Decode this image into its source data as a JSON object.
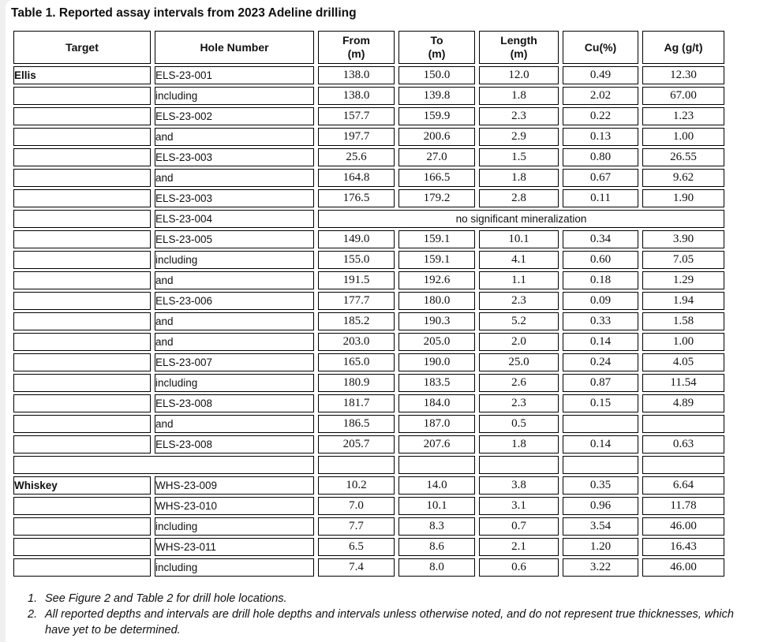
{
  "page": {
    "title": "Table 1. Reported assay intervals from 2023 Adeline drilling"
  },
  "table": {
    "headers": [
      {
        "name": "target",
        "lines": [
          "Target"
        ]
      },
      {
        "name": "hole-number",
        "lines": [
          "Hole Number"
        ]
      },
      {
        "name": "from-m",
        "lines": [
          "From",
          "(m)"
        ]
      },
      {
        "name": "to-m",
        "lines": [
          "To",
          "(m)"
        ]
      },
      {
        "name": "length-m",
        "lines": [
          "Length",
          "(m)"
        ]
      },
      {
        "name": "cu-pct",
        "lines": [
          "Cu(%)"
        ]
      },
      {
        "name": "ag-gpt",
        "lines": [
          "Ag (g/t)"
        ]
      }
    ],
    "rows": [
      {
        "type": "data",
        "target": "Ellis",
        "hole": "ELS-23-001",
        "from": "138.0",
        "to": "150.0",
        "length": "12.0",
        "cu": "0.49",
        "ag": "12.30"
      },
      {
        "type": "data",
        "target": "",
        "hole": "including",
        "from": "138.0",
        "to": "139.8",
        "length": "1.8",
        "cu": "2.02",
        "ag": "67.00"
      },
      {
        "type": "data",
        "target": "",
        "hole": "ELS-23-002",
        "from": "157.7",
        "to": "159.9",
        "length": "2.3",
        "cu": "0.22",
        "ag": "1.23"
      },
      {
        "type": "data",
        "target": "",
        "hole": "and",
        "from": "197.7",
        "to": "200.6",
        "length": "2.9",
        "cu": "0.13",
        "ag": "1.00"
      },
      {
        "type": "data",
        "target": "",
        "hole": "ELS-23-003",
        "from": "25.6",
        "to": "27.0",
        "length": "1.5",
        "cu": "0.80",
        "ag": "26.55"
      },
      {
        "type": "data",
        "target": "",
        "hole": "and",
        "from": "164.8",
        "to": "166.5",
        "length": "1.8",
        "cu": "0.67",
        "ag": "9.62"
      },
      {
        "type": "data",
        "target": "",
        "hole": "ELS-23-003",
        "from": "176.5",
        "to": "179.2",
        "length": "2.8",
        "cu": "0.11",
        "ag": "1.90"
      },
      {
        "type": "note",
        "target": "",
        "hole": "ELS-23-004",
        "note": "no significant mineralization"
      },
      {
        "type": "data",
        "target": "",
        "hole": "ELS-23-005",
        "from": "149.0",
        "to": "159.1",
        "length": "10.1",
        "cu": "0.34",
        "ag": "3.90"
      },
      {
        "type": "data",
        "target": "",
        "hole": "including",
        "from": "155.0",
        "to": "159.1",
        "length": "4.1",
        "cu": "0.60",
        "ag": "7.05"
      },
      {
        "type": "data",
        "target": "",
        "hole": "and",
        "from": "191.5",
        "to": "192.6",
        "length": "1.1",
        "cu": "0.18",
        "ag": "1.29"
      },
      {
        "type": "data",
        "target": "",
        "hole": "ELS-23-006",
        "from": "177.7",
        "to": "180.0",
        "length": "2.3",
        "cu": "0.09",
        "ag": "1.94"
      },
      {
        "type": "data",
        "target": "",
        "hole": "and",
        "from": "185.2",
        "to": "190.3",
        "length": "5.2",
        "cu": "0.33",
        "ag": "1.58"
      },
      {
        "type": "data",
        "target": "",
        "hole": "and",
        "from": "203.0",
        "to": "205.0",
        "length": "2.0",
        "cu": "0.14",
        "ag": "1.00"
      },
      {
        "type": "data",
        "target": "",
        "hole": "ELS-23-007",
        "from": "165.0",
        "to": "190.0",
        "length": "25.0",
        "cu": "0.24",
        "ag": "4.05"
      },
      {
        "type": "data",
        "target": "",
        "hole": "including",
        "from": "180.9",
        "to": "183.5",
        "length": "2.6",
        "cu": "0.87",
        "ag": "11.54"
      },
      {
        "type": "data",
        "target": "",
        "hole": "ELS-23-008",
        "from": "181.7",
        "to": "184.0",
        "length": "2.3",
        "cu": "0.15",
        "ag": "4.89"
      },
      {
        "type": "data",
        "target": "",
        "hole": "and",
        "from": "186.5",
        "to": "187.0",
        "length": "0.5",
        "cu": "",
        "ag": ""
      },
      {
        "type": "data",
        "target": "",
        "hole": "ELS-23-008",
        "from": "205.7",
        "to": "207.6",
        "length": "1.8",
        "cu": "0.14",
        "ag": "0.63"
      },
      {
        "type": "spacer"
      },
      {
        "type": "data",
        "target": "Whiskey",
        "hole": "WHS-23-009",
        "from": "10.2",
        "to": "14.0",
        "length": "3.8",
        "cu": "0.35",
        "ag": "6.64"
      },
      {
        "type": "data",
        "target": "",
        "hole": "WHS-23-010",
        "from": "7.0",
        "to": "10.1",
        "length": "3.1",
        "cu": "0.96",
        "ag": "11.78"
      },
      {
        "type": "data",
        "target": "",
        "hole": "including",
        "from": "7.7",
        "to": "8.3",
        "length": "0.7",
        "cu": "3.54",
        "ag": "46.00"
      },
      {
        "type": "data",
        "target": "",
        "hole": "WHS-23-011",
        "from": "6.5",
        "to": "8.6",
        "length": "2.1",
        "cu": "1.20",
        "ag": "16.43"
      },
      {
        "type": "data",
        "target": "",
        "hole": "including",
        "from": "7.4",
        "to": "8.0",
        "length": "0.6",
        "cu": "3.22",
        "ag": "46.00"
      }
    ]
  },
  "footnotes": [
    {
      "num": "1.",
      "text": "See Figure 2 and Table 2 for drill hole locations."
    },
    {
      "num": "2.",
      "text": "All reported depths and intervals are drill hole depths and intervals unless otherwise noted, and do not represent true thicknesses, which have yet to be determined."
    }
  ]
}
